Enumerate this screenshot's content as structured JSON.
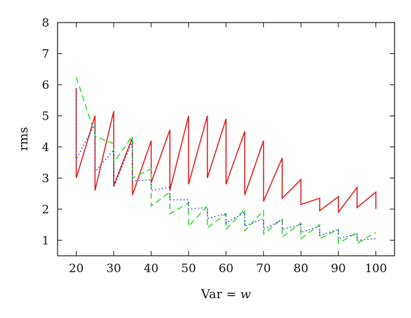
{
  "chart_data": {
    "type": "line",
    "title": "",
    "xlabel": "Var = ",
    "xlabel_var": "w",
    "ylabel": "rms",
    "xlim": [
      15,
      105
    ],
    "ylim": [
      0.5,
      8
    ],
    "xticks": [
      20,
      30,
      40,
      50,
      60,
      70,
      80,
      90,
      100
    ],
    "yticks": [
      1,
      2,
      3,
      4,
      5,
      6,
      7,
      8
    ],
    "grid": false,
    "legend": "none",
    "series": [
      {
        "color": "#e0201b",
        "dash": "solid",
        "x": [
          20,
          20,
          25,
          25,
          30,
          30,
          35,
          35,
          40,
          40,
          45,
          45,
          50,
          50,
          55,
          55,
          60,
          60,
          65,
          65,
          70,
          70,
          75,
          75,
          80,
          80,
          85,
          85,
          90,
          90,
          95,
          95,
          100,
          100
        ],
        "y": [
          5.9,
          3.0,
          5.0,
          2.6,
          5.15,
          2.75,
          4.3,
          2.45,
          4.2,
          2.85,
          4.55,
          2.6,
          5.0,
          2.8,
          5.0,
          3.0,
          4.9,
          2.8,
          4.5,
          2.45,
          4.2,
          2.25,
          3.65,
          2.35,
          2.95,
          2.15,
          2.35,
          1.95,
          2.4,
          1.9,
          2.7,
          2.05,
          2.55,
          2.0
        ]
      },
      {
        "color": "#33dd33",
        "dash": "dashed",
        "x": [
          20,
          25,
          25,
          30,
          30,
          35,
          35,
          40,
          40,
          45,
          45,
          50,
          50,
          55,
          55,
          60,
          60,
          65,
          65,
          70,
          70,
          75,
          75,
          80,
          80,
          85,
          85,
          90,
          90,
          95,
          95,
          100
        ],
        "y": [
          6.25,
          4.4,
          4.35,
          4.1,
          3.5,
          4.35,
          3.0,
          3.3,
          2.1,
          2.55,
          1.85,
          2.2,
          1.45,
          2.1,
          1.4,
          1.85,
          1.35,
          2.0,
          1.3,
          1.95,
          1.2,
          1.7,
          1.1,
          1.55,
          1.05,
          1.5,
          1.05,
          1.35,
          0.9,
          1.25,
          0.9,
          1.25
        ]
      },
      {
        "color": "#2b2bcc",
        "dash": "dotted",
        "x": [
          20,
          20,
          25,
          25,
          30,
          30,
          35,
          35,
          40,
          40,
          45,
          45,
          50,
          50,
          55,
          55,
          60,
          60,
          65,
          65,
          70,
          70,
          75,
          75,
          80,
          80,
          85,
          85,
          90,
          90,
          95,
          95,
          100
        ],
        "y": [
          5.85,
          3.6,
          4.75,
          3.2,
          3.9,
          2.7,
          4.2,
          2.9,
          2.95,
          2.6,
          2.7,
          2.3,
          2.3,
          2.0,
          2.05,
          1.7,
          1.85,
          1.55,
          1.9,
          1.45,
          1.7,
          1.35,
          1.65,
          1.35,
          1.5,
          1.25,
          1.45,
          1.15,
          1.35,
          1.05,
          1.2,
          1.0,
          1.05
        ]
      }
    ]
  }
}
